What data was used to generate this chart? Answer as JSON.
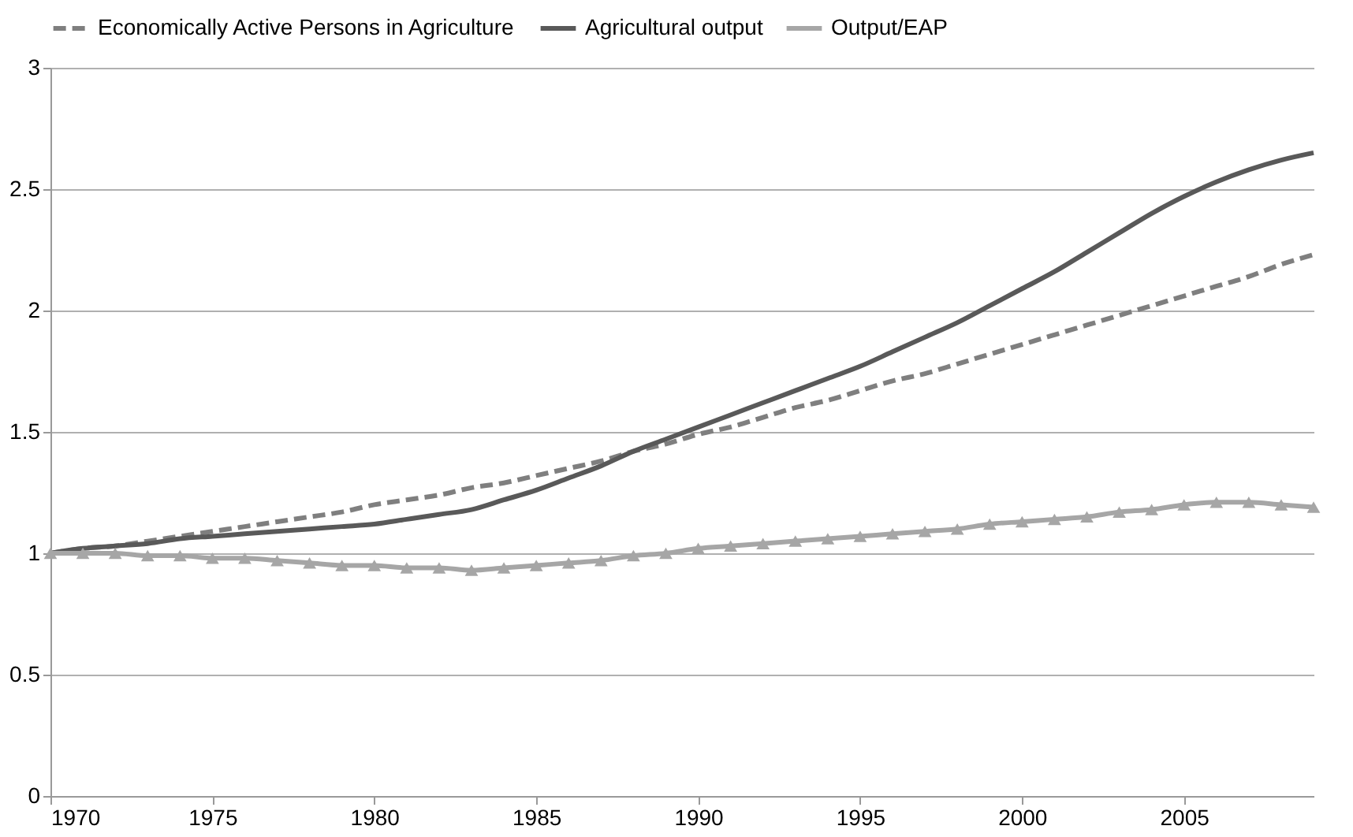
{
  "chart_data": {
    "type": "line",
    "x": [
      1970,
      1971,
      1972,
      1973,
      1974,
      1975,
      1976,
      1977,
      1978,
      1979,
      1980,
      1981,
      1982,
      1983,
      1984,
      1985,
      1986,
      1987,
      1988,
      1989,
      1990,
      1991,
      1992,
      1993,
      1994,
      1995,
      1996,
      1997,
      1998,
      1999,
      2000,
      2001,
      2002,
      2003,
      2004,
      2005,
      2006,
      2007,
      2008,
      2009
    ],
    "series": [
      {
        "name": "Economically Active Persons in Agriculture",
        "color": "#7f7f7f",
        "line_style": "dashed",
        "marker": "none",
        "values": [
          1.0,
          1.02,
          1.03,
          1.05,
          1.07,
          1.09,
          1.11,
          1.13,
          1.15,
          1.17,
          1.2,
          1.22,
          1.24,
          1.27,
          1.29,
          1.32,
          1.35,
          1.38,
          1.42,
          1.45,
          1.49,
          1.52,
          1.56,
          1.6,
          1.63,
          1.67,
          1.71,
          1.74,
          1.78,
          1.82,
          1.86,
          1.9,
          1.94,
          1.98,
          2.02,
          2.06,
          2.1,
          2.14,
          2.19,
          2.23
        ]
      },
      {
        "name": "Agricultural output",
        "color": "#595959",
        "line_style": "solid",
        "marker": "none",
        "values": [
          1.0,
          1.02,
          1.03,
          1.04,
          1.06,
          1.07,
          1.08,
          1.09,
          1.1,
          1.11,
          1.12,
          1.14,
          1.16,
          1.18,
          1.22,
          1.26,
          1.31,
          1.36,
          1.42,
          1.47,
          1.52,
          1.57,
          1.62,
          1.67,
          1.72,
          1.77,
          1.83,
          1.89,
          1.95,
          2.02,
          2.09,
          2.16,
          2.24,
          2.32,
          2.4,
          2.47,
          2.53,
          2.58,
          2.62,
          2.65
        ]
      },
      {
        "name": "Output/EAP",
        "color": "#a6a6a6",
        "line_style": "solid",
        "marker": "triangle",
        "values": [
          1.0,
          1.0,
          1.0,
          0.99,
          0.99,
          0.98,
          0.98,
          0.97,
          0.96,
          0.95,
          0.95,
          0.94,
          0.94,
          0.93,
          0.94,
          0.95,
          0.96,
          0.97,
          0.99,
          1.0,
          1.02,
          1.03,
          1.04,
          1.05,
          1.06,
          1.07,
          1.08,
          1.09,
          1.1,
          1.12,
          1.13,
          1.14,
          1.15,
          1.17,
          1.18,
          1.2,
          1.21,
          1.21,
          1.2,
          1.19
        ]
      }
    ],
    "xlim": [
      1970,
      2009
    ],
    "xticks": [
      1970,
      1975,
      1980,
      1985,
      1990,
      1995,
      2000,
      2005
    ],
    "ylim": [
      0,
      3
    ],
    "yticks": [
      0,
      0.5,
      1,
      1.5,
      2,
      2.5,
      3
    ],
    "grid": "y",
    "legend": "top"
  }
}
